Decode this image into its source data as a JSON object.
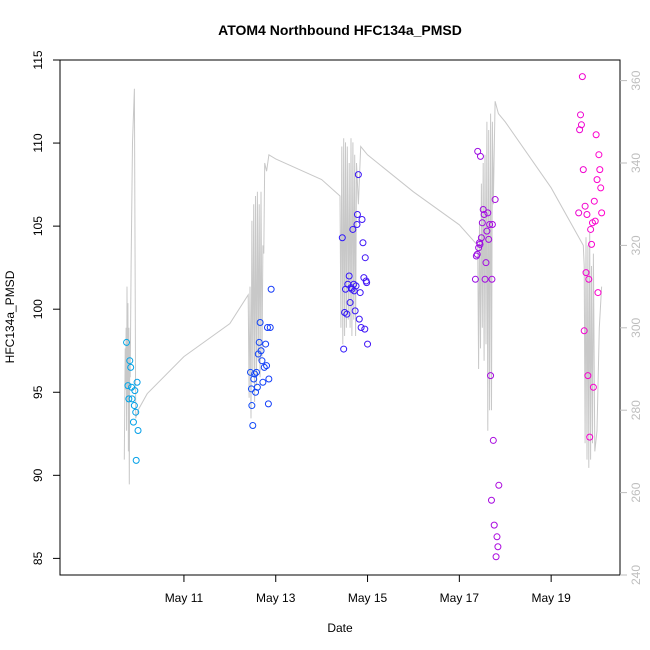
{
  "chart_data": {
    "type": "scatter",
    "title": "ATOM4 Northbound HFC134a_PMSD",
    "xlabel": "Date",
    "ylabel": "HFC134a_PMSD",
    "xlim_days": [
      8.3,
      20.5
    ],
    "ylim": [
      84,
      115
    ],
    "ylim_right": [
      240,
      365
    ],
    "x_ticks": [
      {
        "day": 11,
        "label": "May 11"
      },
      {
        "day": 13,
        "label": "May 13"
      },
      {
        "day": 15,
        "label": "May 15"
      },
      {
        "day": 17,
        "label": "May 17"
      },
      {
        "day": 19,
        "label": "May 19"
      }
    ],
    "y_ticks": [
      85,
      90,
      95,
      100,
      105,
      110,
      115
    ],
    "y_ticks_right": [
      240,
      260,
      280,
      300,
      320,
      340,
      360
    ],
    "secondary_series_name": "altitude trace (grey line)",
    "point_color_start": "#00a6e6",
    "point_color_mid": "#1a1aff",
    "point_color_end": "#ff00cc",
    "line_color": "#c8c8c8",
    "points": [
      [
        9.75,
        98.0
      ],
      [
        9.78,
        95.4
      ],
      [
        9.8,
        94.6
      ],
      [
        9.82,
        96.9
      ],
      [
        9.84,
        96.5
      ],
      [
        9.86,
        95.3
      ],
      [
        9.87,
        94.6
      ],
      [
        9.9,
        93.2
      ],
      [
        9.92,
        94.2
      ],
      [
        9.93,
        95.1
      ],
      [
        9.95,
        93.8
      ],
      [
        9.96,
        90.9
      ],
      [
        9.98,
        95.6
      ],
      [
        10.0,
        92.7
      ],
      [
        12.45,
        96.2
      ],
      [
        12.47,
        95.2
      ],
      [
        12.48,
        94.2
      ],
      [
        12.5,
        93.0
      ],
      [
        12.52,
        95.8
      ],
      [
        12.54,
        96.1
      ],
      [
        12.56,
        95.0
      ],
      [
        12.58,
        96.2
      ],
      [
        12.6,
        95.3
      ],
      [
        12.62,
        97.3
      ],
      [
        12.64,
        98.0
      ],
      [
        12.66,
        99.2
      ],
      [
        12.68,
        97.5
      ],
      [
        12.7,
        96.9
      ],
      [
        12.72,
        95.6
      ],
      [
        12.75,
        96.5
      ],
      [
        12.78,
        97.9
      ],
      [
        12.8,
        96.6
      ],
      [
        12.82,
        98.9
      ],
      [
        12.84,
        94.3
      ],
      [
        12.85,
        95.8
      ],
      [
        12.88,
        98.9
      ],
      [
        12.9,
        101.2
      ],
      [
        14.45,
        104.3
      ],
      [
        14.48,
        97.6
      ],
      [
        14.5,
        99.8
      ],
      [
        14.52,
        101.2
      ],
      [
        14.55,
        99.7
      ],
      [
        14.57,
        101.5
      ],
      [
        14.6,
        102.0
      ],
      [
        14.62,
        100.4
      ],
      [
        14.64,
        101.3
      ],
      [
        14.66,
        101.2
      ],
      [
        14.68,
        104.8
      ],
      [
        14.7,
        101.5
      ],
      [
        14.71,
        101.1
      ],
      [
        14.73,
        99.9
      ],
      [
        14.75,
        101.4
      ],
      [
        14.77,
        105.1
      ],
      [
        14.78,
        105.7
      ],
      [
        14.8,
        108.1
      ],
      [
        14.82,
        99.4
      ],
      [
        14.84,
        101.0
      ],
      [
        14.86,
        98.9
      ],
      [
        14.88,
        105.4
      ],
      [
        14.9,
        104.0
      ],
      [
        14.92,
        101.9
      ],
      [
        14.94,
        98.8
      ],
      [
        14.95,
        103.1
      ],
      [
        14.97,
        101.7
      ],
      [
        14.98,
        101.6
      ],
      [
        15.0,
        97.9
      ],
      [
        17.35,
        101.8
      ],
      [
        17.37,
        103.2
      ],
      [
        17.39,
        103.3
      ],
      [
        17.4,
        109.5
      ],
      [
        17.42,
        103.7
      ],
      [
        17.44,
        104.0
      ],
      [
        17.45,
        103.9
      ],
      [
        17.46,
        109.2
      ],
      [
        17.48,
        104.3
      ],
      [
        17.5,
        105.2
      ],
      [
        17.52,
        106.0
      ],
      [
        17.54,
        105.7
      ],
      [
        17.56,
        101.8
      ],
      [
        17.58,
        102.8
      ],
      [
        17.6,
        104.7
      ],
      [
        17.62,
        105.8
      ],
      [
        17.64,
        104.2
      ],
      [
        17.66,
        105.1
      ],
      [
        17.68,
        96.0
      ],
      [
        17.7,
        88.5
      ],
      [
        17.71,
        101.8
      ],
      [
        17.72,
        105.1
      ],
      [
        17.74,
        92.1
      ],
      [
        17.76,
        87.0
      ],
      [
        17.78,
        106.6
      ],
      [
        17.8,
        85.1
      ],
      [
        17.82,
        86.3
      ],
      [
        17.84,
        85.7
      ],
      [
        17.86,
        89.4
      ],
      [
        19.6,
        105.8
      ],
      [
        19.62,
        110.8
      ],
      [
        19.64,
        111.7
      ],
      [
        19.66,
        111.1
      ],
      [
        19.68,
        114.0
      ],
      [
        19.7,
        108.4
      ],
      [
        19.72,
        98.7
      ],
      [
        19.74,
        106.2
      ],
      [
        19.76,
        102.2
      ],
      [
        19.78,
        105.7
      ],
      [
        19.8,
        96.0
      ],
      [
        19.82,
        101.8
      ],
      [
        19.84,
        92.3
      ],
      [
        19.86,
        104.8
      ],
      [
        19.88,
        103.9
      ],
      [
        19.9,
        105.2
      ],
      [
        19.92,
        95.3
      ],
      [
        19.94,
        106.5
      ],
      [
        19.96,
        105.3
      ],
      [
        19.98,
        110.5
      ],
      [
        20.0,
        107.8
      ],
      [
        20.02,
        101.0
      ],
      [
        20.04,
        109.3
      ],
      [
        20.06,
        108.4
      ],
      [
        20.08,
        107.3
      ],
      [
        20.1,
        105.8
      ]
    ],
    "line": [
      [
        9.7,
        268
      ],
      [
        9.72,
        295
      ],
      [
        9.73,
        285
      ],
      [
        9.74,
        300
      ],
      [
        9.75,
        275
      ],
      [
        9.76,
        310
      ],
      [
        9.77,
        282
      ],
      [
        9.78,
        306
      ],
      [
        9.79,
        270
      ],
      [
        9.8,
        300
      ],
      [
        9.81,
        262
      ],
      [
        9.82,
        296
      ],
      [
        9.83,
        288
      ],
      [
        9.85,
        315
      ],
      [
        9.88,
        345
      ],
      [
        9.92,
        358
      ],
      [
        9.95,
        278
      ],
      [
        10.0,
        280
      ],
      [
        10.2,
        284
      ],
      [
        11.0,
        293
      ],
      [
        12.0,
        301
      ],
      [
        12.4,
        308
      ],
      [
        12.42,
        283
      ],
      [
        12.44,
        310
      ],
      [
        12.46,
        278
      ],
      [
        12.48,
        326
      ],
      [
        12.5,
        290
      ],
      [
        12.52,
        330
      ],
      [
        12.54,
        282
      ],
      [
        12.56,
        332
      ],
      [
        12.58,
        286
      ],
      [
        12.6,
        333
      ],
      [
        12.62,
        292
      ],
      [
        12.64,
        330
      ],
      [
        12.66,
        288
      ],
      [
        12.68,
        333
      ],
      [
        12.7,
        293
      ],
      [
        12.72,
        320
      ],
      [
        12.74,
        318
      ],
      [
        12.76,
        340
      ],
      [
        12.8,
        338
      ],
      [
        12.85,
        342
      ],
      [
        13.0,
        341
      ],
      [
        14.0,
        336
      ],
      [
        14.4,
        332
      ],
      [
        14.42,
        300
      ],
      [
        14.44,
        344
      ],
      [
        14.46,
        296
      ],
      [
        14.48,
        346
      ],
      [
        14.5,
        298
      ],
      [
        14.52,
        345
      ],
      [
        14.54,
        300
      ],
      [
        14.56,
        344
      ],
      [
        14.58,
        302
      ],
      [
        14.6,
        340
      ],
      [
        14.62,
        300
      ],
      [
        14.64,
        346
      ],
      [
        14.66,
        298
      ],
      [
        14.68,
        345
      ],
      [
        14.7,
        302
      ],
      [
        14.72,
        342
      ],
      [
        14.74,
        298
      ],
      [
        14.76,
        340
      ],
      [
        14.8,
        330
      ],
      [
        14.85,
        344
      ],
      [
        15.0,
        342
      ],
      [
        16.0,
        333
      ],
      [
        17.0,
        325
      ],
      [
        17.4,
        320
      ],
      [
        17.42,
        290
      ],
      [
        17.44,
        326
      ],
      [
        17.46,
        295
      ],
      [
        17.48,
        335
      ],
      [
        17.5,
        300
      ],
      [
        17.52,
        340
      ],
      [
        17.54,
        292
      ],
      [
        17.56,
        342
      ],
      [
        17.58,
        296
      ],
      [
        17.6,
        350
      ],
      [
        17.62,
        275
      ],
      [
        17.64,
        348
      ],
      [
        17.66,
        280
      ],
      [
        17.68,
        352
      ],
      [
        17.7,
        280
      ],
      [
        17.72,
        350
      ],
      [
        17.74,
        330
      ],
      [
        17.78,
        355
      ],
      [
        17.85,
        352
      ],
      [
        18.0,
        350
      ],
      [
        19.0,
        334
      ],
      [
        19.7,
        320
      ],
      [
        19.72,
        315
      ],
      [
        19.74,
        272
      ],
      [
        19.76,
        322
      ],
      [
        19.78,
        268
      ],
      [
        19.8,
        320
      ],
      [
        19.82,
        266
      ],
      [
        19.84,
        323
      ],
      [
        19.86,
        268
      ],
      [
        19.88,
        315
      ],
      [
        19.9,
        272
      ],
      [
        19.92,
        318
      ],
      [
        19.95,
        270
      ],
      [
        20.0,
        275
      ],
      [
        20.05,
        300
      ],
      [
        20.1,
        310
      ]
    ]
  }
}
